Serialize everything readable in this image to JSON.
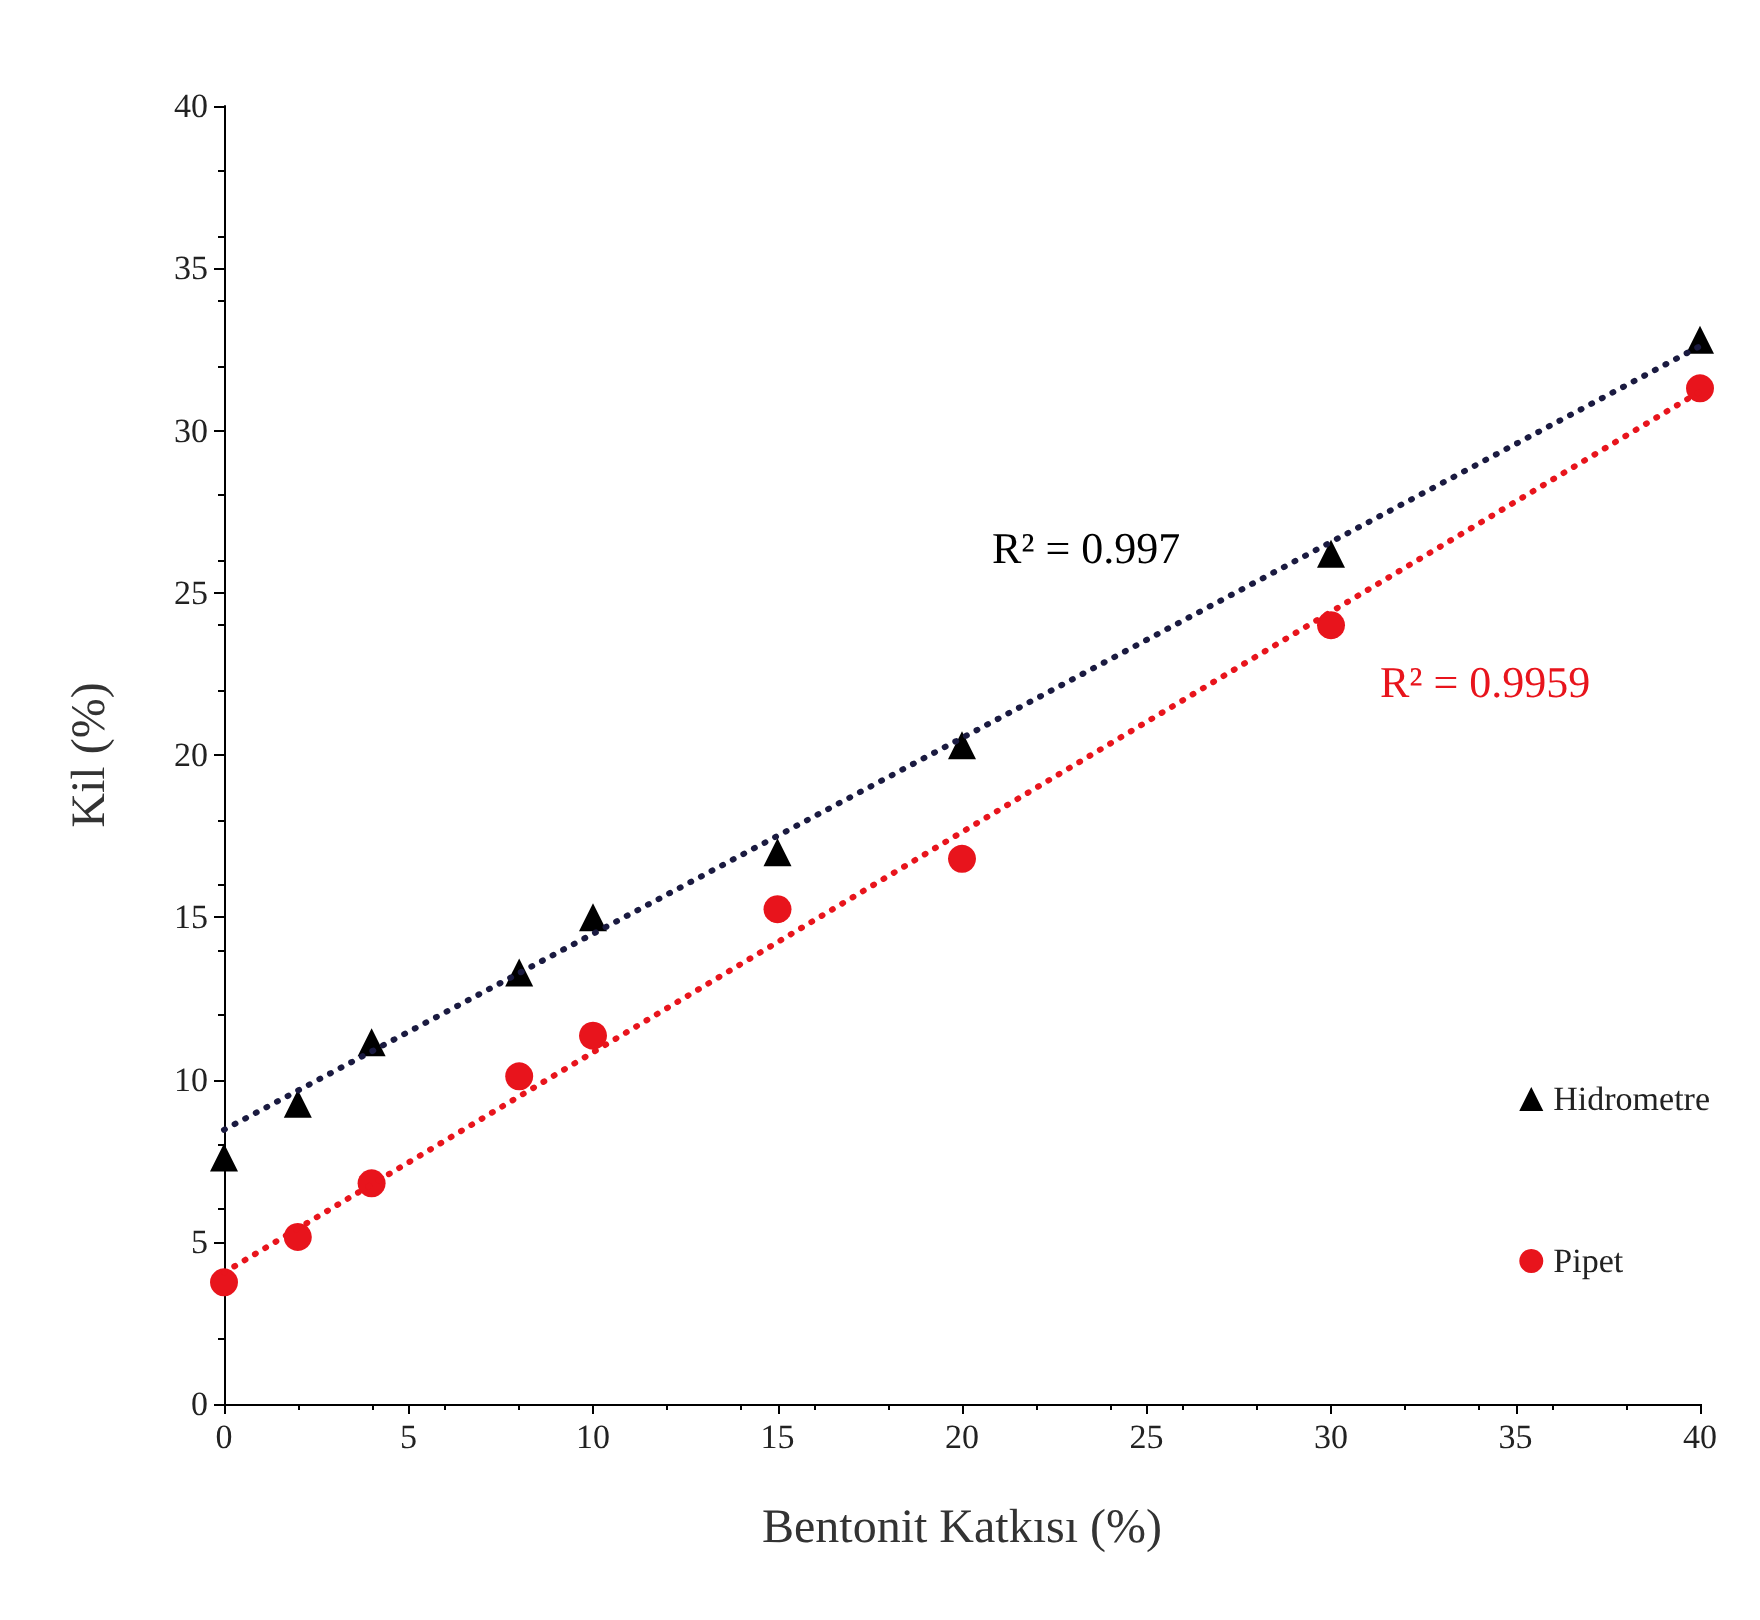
{
  "chart_data": {
    "type": "scatter",
    "xlabel": "Bentonit Katkısı (%)",
    "ylabel": "Kil (%)",
    "xlim": [
      0,
      40
    ],
    "xticks": [
      0,
      5,
      10,
      15,
      20,
      25,
      30,
      35,
      40
    ],
    "ylim": [
      0,
      40
    ],
    "yticks": [
      0,
      5,
      10,
      15,
      20,
      25,
      30,
      35,
      40
    ],
    "grid": false,
    "legend": "right",
    "series": [
      {
        "name": "Hidrometre",
        "marker": "triangle",
        "color": "#000000",
        "x": [
          0,
          2,
          4,
          8,
          10,
          15,
          20,
          30,
          40
        ],
        "values": [
          7.6,
          9.25,
          11.15,
          13.3,
          15.0,
          17.0,
          20.3,
          26.2,
          32.8
        ]
      },
      {
        "name": "Pipet",
        "marker": "circle",
        "color": "#e8141c",
        "x": [
          0,
          2,
          4,
          8,
          10,
          15,
          20,
          30,
          40
        ],
        "values": [
          3.75,
          5.15,
          6.8,
          10.1,
          11.35,
          15.25,
          16.8,
          24.0,
          31.3
        ]
      },
      {
        "type": "line",
        "marker": "none",
        "line_style": "dotted",
        "color": "#1a1a40",
        "x": [
          0,
          40
        ],
        "values": [
          8.45,
          32.6
        ]
      },
      {
        "type": "line",
        "marker": "none",
        "line_style": "dotted",
        "color": "#e8141c",
        "x": [
          0,
          40
        ],
        "values": [
          4.05,
          31.2
        ]
      }
    ],
    "annotations": [
      "R² = 0.997",
      "R² = 0.9959"
    ]
  }
}
